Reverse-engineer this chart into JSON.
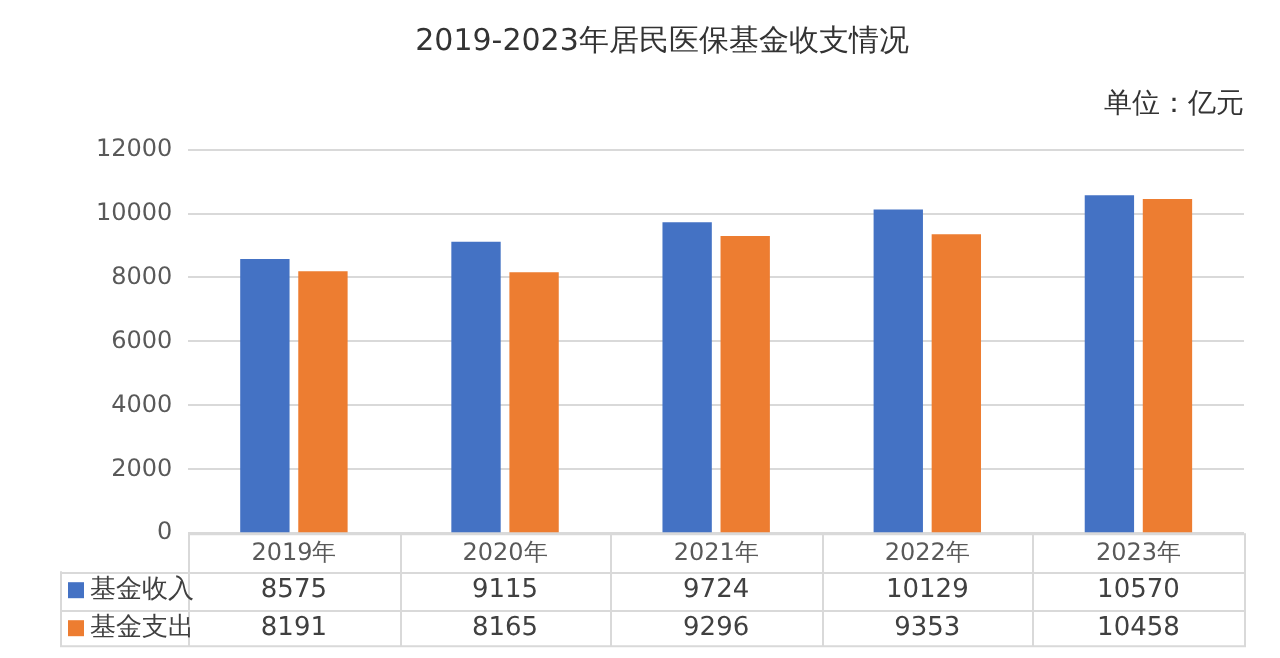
{
  "chart_data": {
    "type": "bar",
    "title": "2019-2023年居民医保基金收支情况",
    "subtitle": "单位：亿元",
    "categories": [
      "2019年",
      "2020年",
      "2021年",
      "2022年",
      "2023年"
    ],
    "series": [
      {
        "name": "基金收入",
        "color": "#4472c4",
        "values": [
          8575,
          9115,
          9724,
          10129,
          10570
        ]
      },
      {
        "name": "基金支出",
        "color": "#ed7d31",
        "values": [
          8191,
          8165,
          9296,
          9353,
          10458
        ]
      }
    ],
    "ylim": [
      0,
      12000
    ],
    "yticks": [
      0,
      2000,
      4000,
      6000,
      8000,
      10000,
      12000
    ],
    "grid": "y",
    "data_labels": true,
    "legend": "bottom left"
  }
}
